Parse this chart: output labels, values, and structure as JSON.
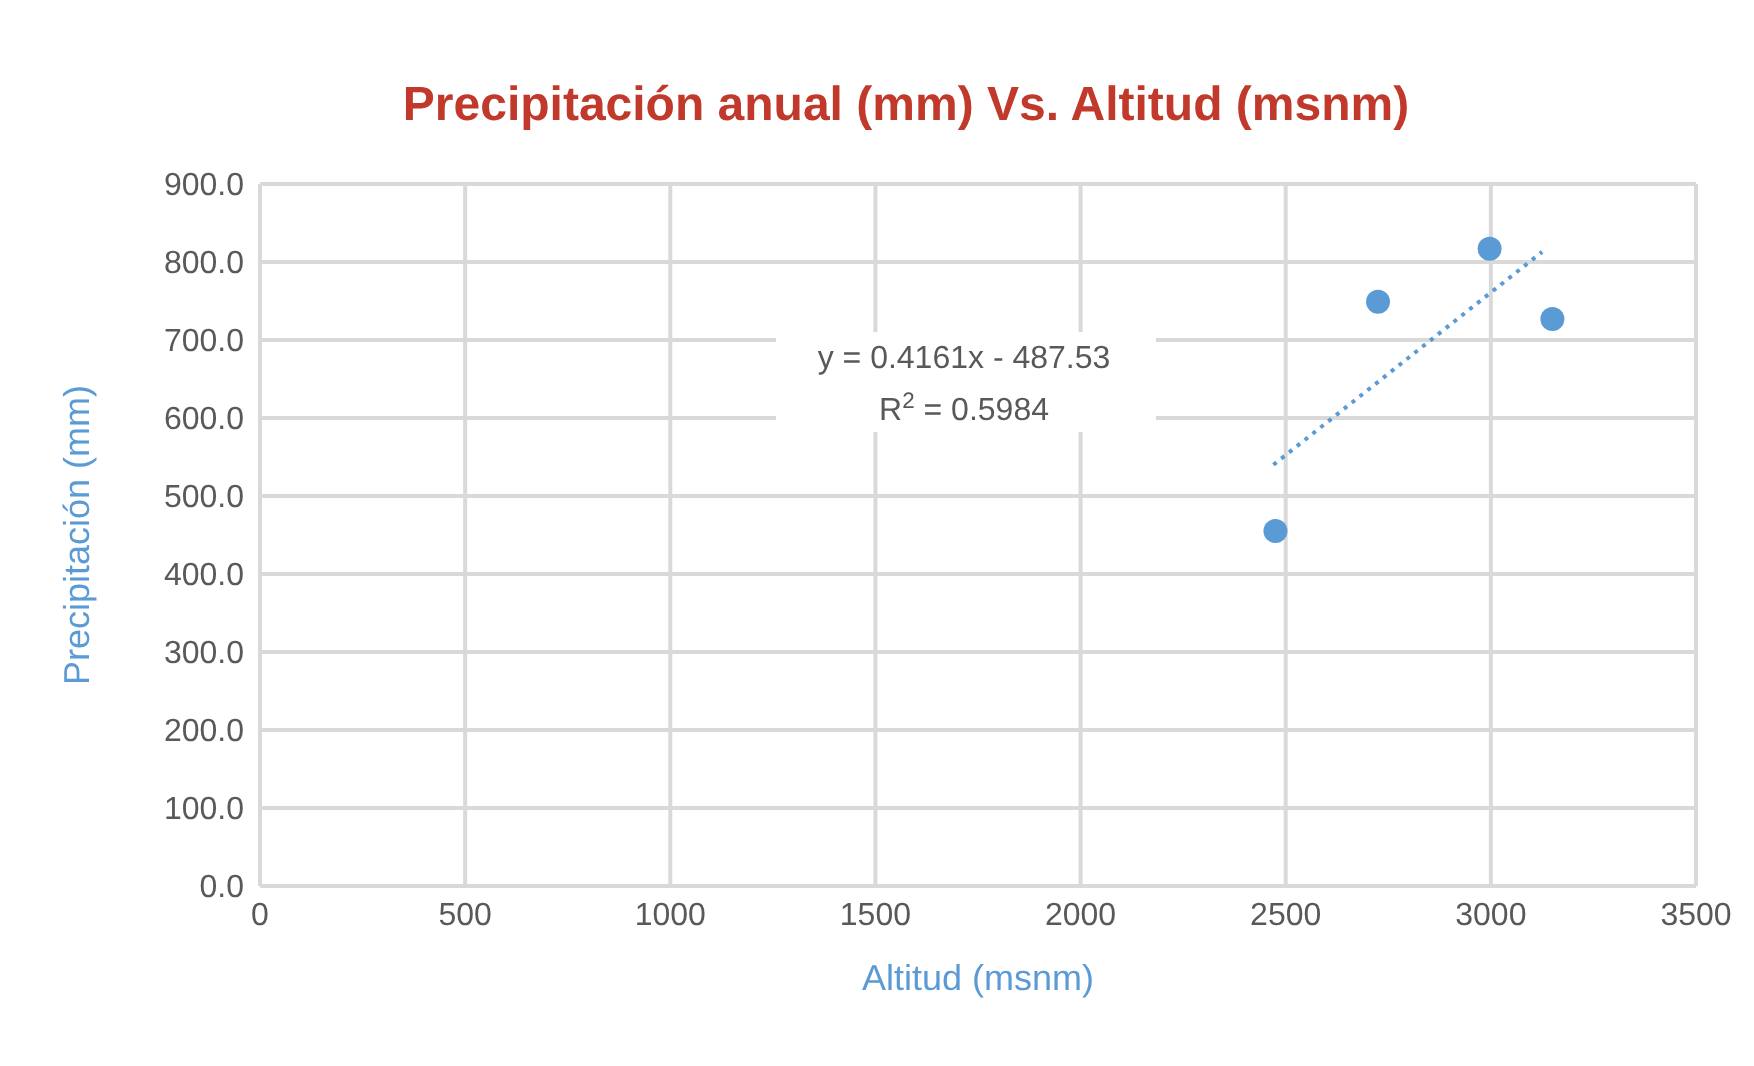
{
  "chart_data": {
    "type": "scatter",
    "title": "Precipitación anual (mm) Vs. Altitud (msnm)",
    "xlabel": "Altitud (msnm)",
    "ylabel": "Precipitación (mm)",
    "xlim": [
      0,
      3500
    ],
    "xticks": [
      0,
      500,
      1000,
      1500,
      2000,
      2500,
      3000,
      3500
    ],
    "ylim": [
      0,
      900
    ],
    "yticks": [
      {
        "value": 0,
        "label": "0.0"
      },
      {
        "value": 100,
        "label": "100.0"
      },
      {
        "value": 200,
        "label": "200.0"
      },
      {
        "value": 300,
        "label": "300.0"
      },
      {
        "value": 400,
        "label": "400.0"
      },
      {
        "value": 500,
        "label": "500.0"
      },
      {
        "value": 600,
        "label": "600.0"
      },
      {
        "value": 700,
        "label": "700.0"
      },
      {
        "value": 800,
        "label": "800.0"
      },
      {
        "value": 900,
        "label": "900.0"
      }
    ],
    "grid": true,
    "marker": "circle",
    "series": [
      {
        "color": "#5b9bd5",
        "x": [
          2475,
          2725,
          2997,
          3150
        ],
        "values": [
          455,
          749,
          817,
          727
        ]
      },
      {
        "type": "line",
        "color": "#5b9bd5",
        "line_style": "dotted",
        "marker": "none",
        "x": [
          2470,
          3125
        ],
        "values": [
          540,
          813
        ]
      }
    ],
    "annotations": [
      "y = 0.4161x - 487.53",
      "R$^{2}$ = 0.5984"
    ]
  }
}
